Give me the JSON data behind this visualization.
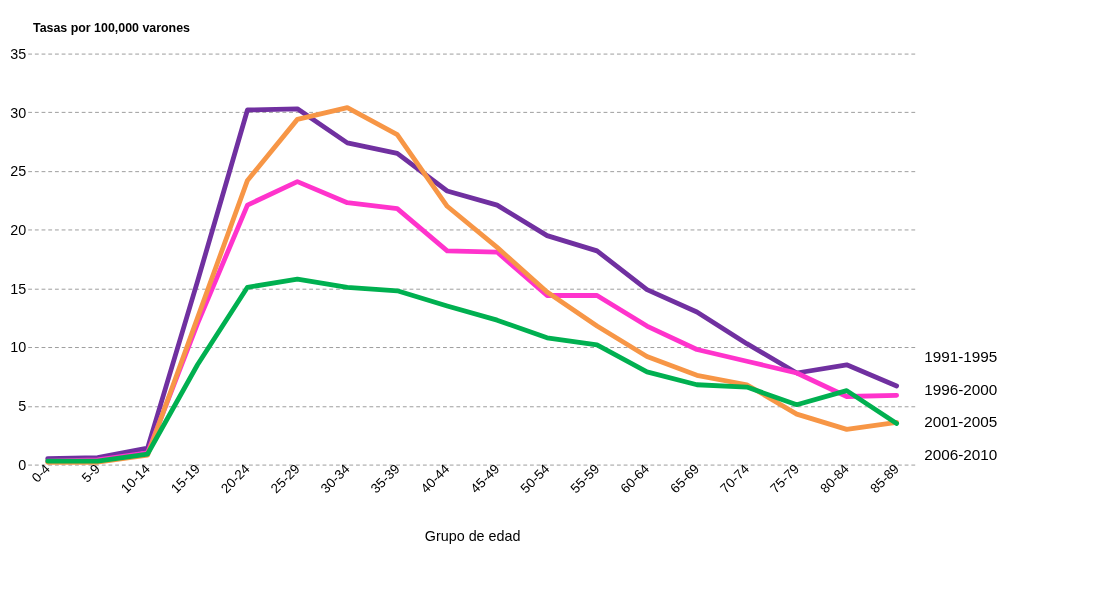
{
  "chart_data": {
    "type": "line",
    "ylabel": "Tasas por 100,000 varones",
    "xlabel": "Grupo de edad",
    "categories": [
      "0-4",
      "5-9",
      "10-14",
      "15-19",
      "20-24",
      "25-29",
      "30-34",
      "35-39",
      "40-44",
      "45-49",
      "50-54",
      "55-59",
      "60-64",
      "65-69",
      "70-74",
      "75-79",
      "80-84",
      "85-89"
    ],
    "series": [
      {
        "name": "1991-1995",
        "color": "#7030a0",
        "values": [
          0.5,
          0.6,
          1.4,
          15.6,
          30.2,
          30.3,
          27.4,
          26.5,
          23.3,
          22.1,
          19.5,
          18.2,
          14.9,
          13.0,
          10.3,
          7.8,
          8.5,
          6.7
        ]
      },
      {
        "name": "1996-2000",
        "color": "#ff33cc",
        "values": [
          0.3,
          0.4,
          1.0,
          12.0,
          22.1,
          24.1,
          22.3,
          21.8,
          18.2,
          18.1,
          14.4,
          14.4,
          11.8,
          9.8,
          8.8,
          7.8,
          5.8,
          5.9
        ]
      },
      {
        "name": "2001-2005",
        "color": "#f79646",
        "values": [
          0.2,
          0.2,
          0.8,
          12.5,
          24.2,
          29.4,
          30.4,
          28.1,
          22.0,
          18.5,
          14.7,
          11.8,
          9.2,
          7.6,
          6.8,
          4.3,
          3.0,
          3.6
        ]
      },
      {
        "name": "2006-2010",
        "color": "#00b050",
        "values": [
          0.3,
          0.3,
          0.9,
          8.5,
          15.1,
          15.8,
          15.1,
          14.8,
          13.5,
          12.3,
          10.8,
          10.2,
          7.9,
          6.8,
          6.6,
          5.1,
          6.3,
          3.5
        ]
      }
    ],
    "ylim": [
      0,
      35
    ],
    "yticks": [
      0,
      5,
      10,
      15,
      20,
      25,
      30,
      35
    ],
    "grid": "y",
    "legend": false,
    "marker": "none",
    "line_style": "solid"
  }
}
